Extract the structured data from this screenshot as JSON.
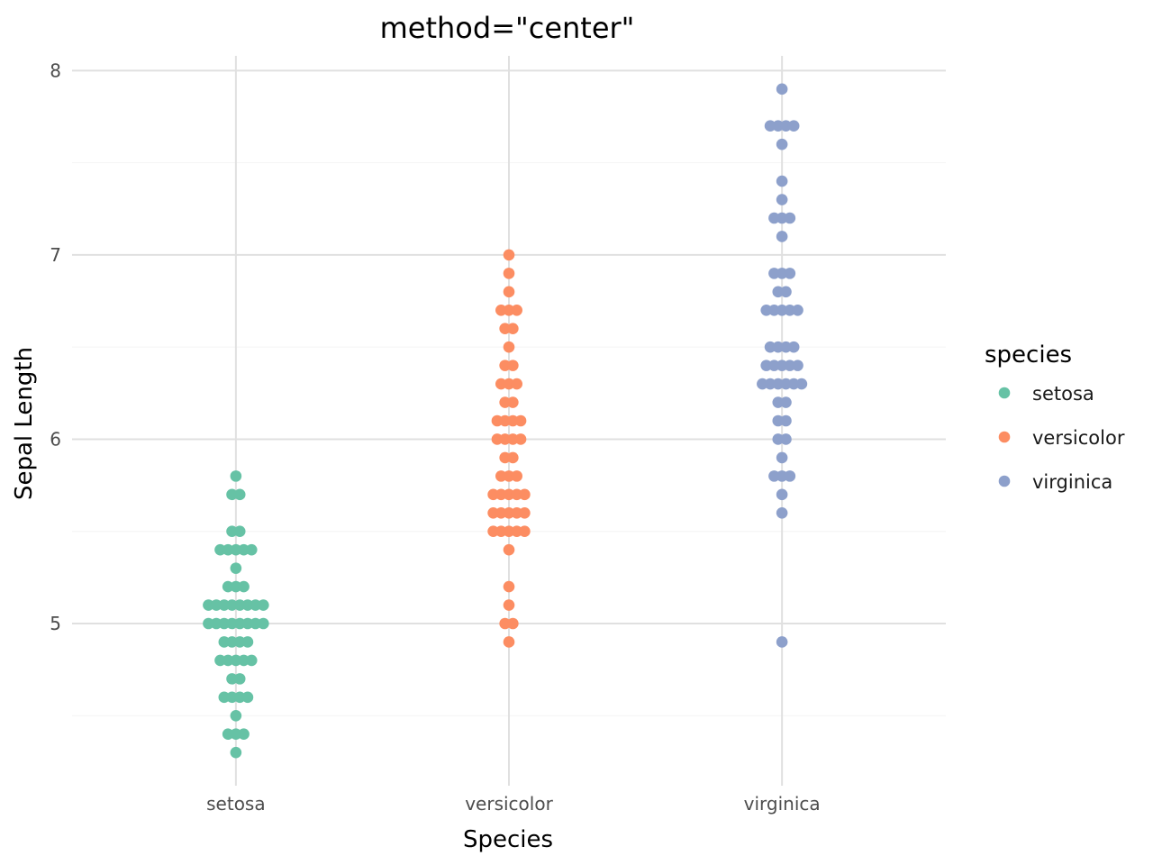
{
  "chart_data": {
    "type": "scatter",
    "subtype": "beeswarm",
    "title": "method=\"center\"",
    "xlabel": "Species",
    "ylabel": "Sepal Length",
    "categories": [
      "setosa",
      "versicolor",
      "virginica"
    ],
    "yticks": [
      5,
      6,
      7,
      8
    ],
    "ytick_labels": [
      "5",
      "6",
      "7",
      "8"
    ],
    "ylim": [
      4.12,
      8.08
    ],
    "grid": true,
    "legend": {
      "title": "species",
      "position": "right",
      "entries": [
        "setosa",
        "versicolor",
        "virginica"
      ]
    },
    "colors": {
      "setosa": "#66c2a5",
      "versicolor": "#fc8d62",
      "virginica": "#8da0cb"
    },
    "series": [
      {
        "name": "setosa",
        "values": [
          4.3,
          4.4,
          4.4,
          4.4,
          4.5,
          4.6,
          4.6,
          4.6,
          4.6,
          4.7,
          4.7,
          4.8,
          4.8,
          4.8,
          4.8,
          4.8,
          4.9,
          4.9,
          4.9,
          4.9,
          5.0,
          5.0,
          5.0,
          5.0,
          5.0,
          5.0,
          5.0,
          5.0,
          5.1,
          5.1,
          5.1,
          5.1,
          5.1,
          5.1,
          5.1,
          5.1,
          5.2,
          5.2,
          5.2,
          5.3,
          5.4,
          5.4,
          5.4,
          5.4,
          5.4,
          5.5,
          5.5,
          5.7,
          5.7,
          5.8
        ]
      },
      {
        "name": "versicolor",
        "values": [
          4.9,
          5.0,
          5.0,
          5.1,
          5.2,
          5.4,
          5.5,
          5.5,
          5.5,
          5.5,
          5.5,
          5.6,
          5.6,
          5.6,
          5.6,
          5.6,
          5.7,
          5.7,
          5.7,
          5.7,
          5.7,
          5.8,
          5.8,
          5.8,
          5.9,
          5.9,
          6.0,
          6.0,
          6.0,
          6.0,
          6.1,
          6.1,
          6.1,
          6.1,
          6.2,
          6.2,
          6.3,
          6.3,
          6.3,
          6.4,
          6.4,
          6.5,
          6.6,
          6.6,
          6.7,
          6.7,
          6.7,
          6.8,
          6.9,
          7.0
        ]
      },
      {
        "name": "virginica",
        "values": [
          4.9,
          5.6,
          5.7,
          5.8,
          5.8,
          5.8,
          5.9,
          6.0,
          6.0,
          6.1,
          6.1,
          6.2,
          6.2,
          6.3,
          6.3,
          6.3,
          6.3,
          6.3,
          6.3,
          6.4,
          6.4,
          6.4,
          6.4,
          6.4,
          6.5,
          6.5,
          6.5,
          6.5,
          6.7,
          6.7,
          6.7,
          6.7,
          6.7,
          6.8,
          6.8,
          6.9,
          6.9,
          6.9,
          7.1,
          7.2,
          7.2,
          7.2,
          7.3,
          7.4,
          7.6,
          7.7,
          7.7,
          7.7,
          7.7,
          7.9
        ]
      }
    ]
  }
}
